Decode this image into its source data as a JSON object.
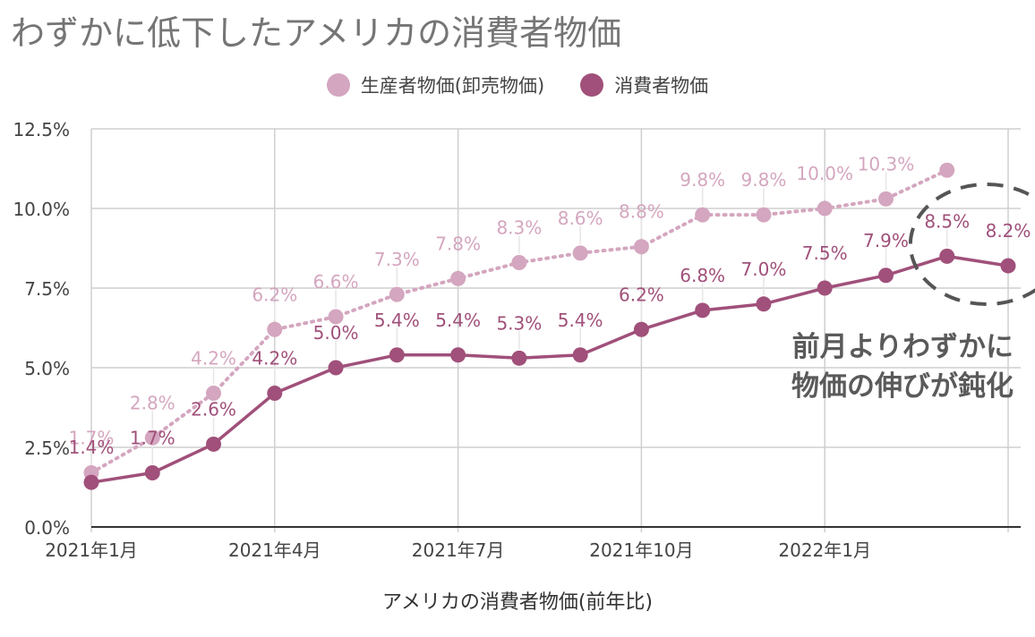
{
  "chart_data": {
    "type": "line",
    "title": "わずかに低下したアメリカの消費者物価",
    "xlabel": "アメリカの消費者物価(前年比)",
    "ylabel": "",
    "ylim": [
      0,
      12.5
    ],
    "yticks": [
      "0.0%",
      "2.5%",
      "5.0%",
      "7.5%",
      "10.0%",
      "12.5%"
    ],
    "ytick_values": [
      0,
      2.5,
      5,
      7.5,
      10,
      12.5
    ],
    "x": [
      "2021年1月",
      "2021年2月",
      "2021年3月",
      "2021年4月",
      "2021年5月",
      "2021年6月",
      "2021年7月",
      "2021年8月",
      "2021年9月",
      "2021年10月",
      "2021年11月",
      "2021年12月",
      "2022年1月",
      "2022年2月",
      "2022年3月",
      "2022年4月"
    ],
    "xtick_labels": [
      "2021年1月",
      "2021年4月",
      "2021年7月",
      "2021年10月",
      "2022年1月"
    ],
    "xtick_index": [
      0,
      3,
      6,
      9,
      12
    ],
    "grid": true,
    "legend": "top-center",
    "series": [
      {
        "name": "生産者物価(卸売物価)",
        "style": "dotted",
        "color": "#d4a6bf",
        "values": [
          1.7,
          2.8,
          4.2,
          6.2,
          6.6,
          7.3,
          7.8,
          8.3,
          8.6,
          8.8,
          9.8,
          9.8,
          10.0,
          10.3,
          11.2,
          null
        ],
        "labels": [
          "1.7%",
          "2.8%",
          "4.2%",
          "6.2%",
          "6.6%",
          "7.3%",
          "7.8%",
          "8.3%",
          "8.6%",
          "8.8%",
          "9.8%",
          "9.8%",
          "10.0%",
          "10.3%",
          "",
          ""
        ]
      },
      {
        "name": "消費者物価",
        "style": "solid",
        "color": "#a0507a",
        "values": [
          1.4,
          1.7,
          2.6,
          4.2,
          5.0,
          5.4,
          5.4,
          5.3,
          5.4,
          6.2,
          6.8,
          7.0,
          7.5,
          7.9,
          8.5,
          8.2
        ],
        "labels": [
          "1.4%",
          "1.7%",
          "2.6%",
          "4.2%",
          "5.0%",
          "5.4%",
          "5.4%",
          "5.3%",
          "5.4%",
          "6.2%",
          "6.8%",
          "7.0%",
          "7.5%",
          "7.9%",
          "8.5%",
          "8.2%"
        ]
      }
    ],
    "annotation": {
      "lines": [
        "前月よりわずかに",
        "物価の伸びが鈍化"
      ],
      "highlight_index": [
        14,
        15
      ]
    }
  },
  "colors": {
    "grid": "#cfcfcf",
    "axis_text": "#444444",
    "annotation_circle": "#555555"
  }
}
